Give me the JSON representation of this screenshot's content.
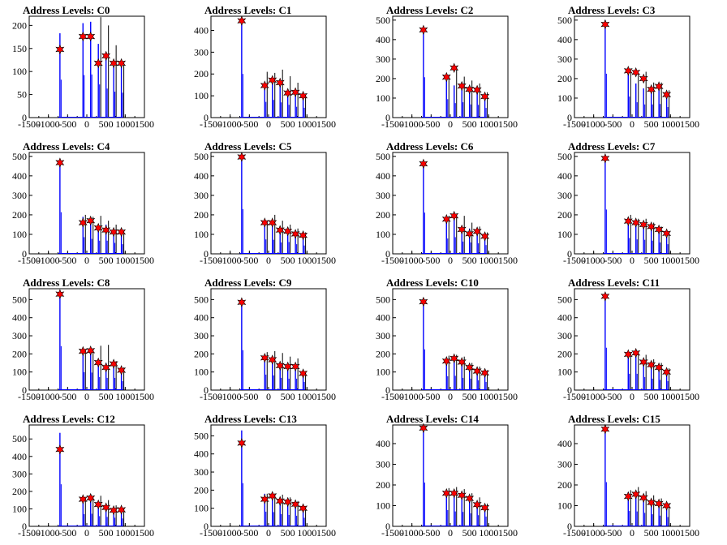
{
  "figure": {
    "xticks": [
      -1500,
      -1000,
      -500,
      0,
      500,
      1000,
      1500
    ],
    "xlim": [
      -1500,
      1500
    ],
    "colors": {
      "histogram": "#0000ff",
      "overlay": "#000000",
      "marker": "#ff0000",
      "axis": "#000000"
    }
  },
  "chart_data": [
    {
      "type": "bar",
      "title": "Address Levels: C0",
      "ylim": [
        0,
        220
      ],
      "yticks": [
        0,
        50,
        100,
        150,
        200
      ],
      "peaks": {
        "x": [
          -700,
          -100,
          100,
          300,
          500,
          700,
          900
        ],
        "blue": [
          183,
          205,
          208,
          160,
          140,
          125,
          120
        ],
        "black": [
          0,
          0,
          0,
          218,
          200,
          157,
          118
        ]
      },
      "markers": {
        "x": [
          -700,
          -100,
          100,
          300,
          500,
          700,
          900
        ],
        "y": [
          148,
          176,
          176,
          118,
          134,
          118,
          118
        ]
      }
    },
    {
      "type": "bar",
      "title": "Address Levels: C1",
      "ylim": [
        0,
        465
      ],
      "yticks": [
        0,
        100,
        200,
        300,
        400
      ],
      "peaks": {
        "x": [
          -700,
          -100,
          100,
          300,
          500,
          700,
          900
        ],
        "blue": [
          445,
          160,
          180,
          155,
          130,
          110,
          100
        ],
        "black": [
          0,
          210,
          205,
          220,
          190,
          160,
          110
        ]
      },
      "markers": {
        "x": [
          -700,
          -100,
          100,
          300,
          500,
          700,
          900
        ],
        "y": [
          444,
          147,
          172,
          160,
          113,
          116,
          100
        ]
      }
    },
    {
      "type": "bar",
      "title": "Address Levels: C2",
      "ylim": [
        0,
        520
      ],
      "yticks": [
        0,
        100,
        200,
        300,
        400,
        500
      ],
      "peaks": {
        "x": [
          -700,
          -100,
          100,
          300,
          500,
          700,
          900
        ],
        "blue": [
          460,
          210,
          165,
          175,
          150,
          145,
          110
        ],
        "black": [
          0,
          220,
          255,
          210,
          190,
          175,
          130
        ]
      },
      "markers": {
        "x": [
          -700,
          -100,
          100,
          300,
          500,
          700,
          900
        ],
        "y": [
          450,
          208,
          255,
          162,
          145,
          142,
          108
        ]
      }
    },
    {
      "type": "bar",
      "title": "Address Levels: C3",
      "ylim": [
        0,
        520
      ],
      "yticks": [
        0,
        100,
        200,
        300,
        400,
        500
      ],
      "peaks": {
        "x": [
          -700,
          -100,
          100,
          300,
          500,
          700,
          900
        ],
        "blue": [
          500,
          240,
          175,
          150,
          150,
          155,
          120
        ],
        "black": [
          0,
          240,
          225,
          235,
          180,
          180,
          140
        ]
      },
      "markers": {
        "x": [
          -700,
          -100,
          100,
          300,
          500,
          700,
          900
        ],
        "y": [
          478,
          240,
          232,
          200,
          145,
          160,
          118
        ]
      }
    },
    {
      "type": "bar",
      "title": "Address Levels: C4",
      "ylim": [
        0,
        520
      ],
      "yticks": [
        0,
        100,
        200,
        300,
        400,
        500
      ],
      "peaks": {
        "x": [
          -700,
          -100,
          100,
          300,
          500,
          700,
          900
        ],
        "blue": [
          475,
          190,
          170,
          150,
          150,
          125,
          110
        ],
        "black": [
          0,
          200,
          190,
          195,
          170,
          150,
          120
        ]
      },
      "markers": {
        "x": [
          -700,
          -100,
          100,
          300,
          500,
          700,
          900
        ],
        "y": [
          468,
          160,
          170,
          133,
          122,
          112,
          112
        ]
      }
    },
    {
      "type": "bar",
      "title": "Address Levels: C5",
      "ylim": [
        0,
        520
      ],
      "yticks": [
        0,
        100,
        200,
        300,
        400,
        500
      ],
      "peaks": {
        "x": [
          -700,
          -100,
          100,
          300,
          500,
          700,
          900
        ],
        "blue": [
          510,
          165,
          160,
          130,
          135,
          110,
          95
        ],
        "black": [
          0,
          170,
          200,
          170,
          150,
          130,
          110
        ]
      },
      "markers": {
        "x": [
          -700,
          -100,
          100,
          300,
          500,
          700,
          900
        ],
        "y": [
          497,
          160,
          160,
          122,
          116,
          102,
          95
        ]
      }
    },
    {
      "type": "bar",
      "title": "Address Levels: C6",
      "ylim": [
        0,
        520
      ],
      "yticks": [
        0,
        100,
        200,
        300,
        400,
        500
      ],
      "peaks": {
        "x": [
          -700,
          -100,
          100,
          300,
          500,
          700,
          900
        ],
        "blue": [
          470,
          175,
          190,
          140,
          130,
          120,
          100
        ],
        "black": [
          0,
          195,
          200,
          195,
          160,
          140,
          110
        ]
      },
      "markers": {
        "x": [
          -700,
          -100,
          100,
          300,
          500,
          700,
          900
        ],
        "y": [
          462,
          178,
          195,
          125,
          103,
          115,
          90
        ]
      }
    },
    {
      "type": "bar",
      "title": "Address Levels: C7",
      "ylim": [
        0,
        520
      ],
      "yticks": [
        0,
        100,
        200,
        300,
        400,
        500
      ],
      "peaks": {
        "x": [
          -700,
          -100,
          100,
          300,
          500,
          700,
          900
        ],
        "blue": [
          505,
          180,
          165,
          160,
          150,
          130,
          110
        ],
        "black": [
          0,
          200,
          180,
          180,
          160,
          140,
          115
        ]
      },
      "markers": {
        "x": [
          -700,
          -100,
          100,
          300,
          500,
          700,
          900
        ],
        "y": [
          490,
          168,
          160,
          150,
          140,
          125,
          105
        ]
      }
    },
    {
      "type": "bar",
      "title": "Address Levels: C8",
      "ylim": [
        0,
        560
      ],
      "yticks": [
        0,
        100,
        200,
        300,
        400,
        500
      ],
      "peaks": {
        "x": [
          -700,
          -100,
          100,
          300,
          500,
          700,
          900
        ],
        "blue": [
          540,
          220,
          215,
          160,
          150,
          150,
          110
        ],
        "black": [
          0,
          225,
          230,
          245,
          250,
          160,
          125
        ]
      },
      "markers": {
        "x": [
          -700,
          -100,
          100,
          300,
          500,
          700,
          900
        ],
        "y": [
          530,
          215,
          218,
          152,
          125,
          145,
          110
        ]
      }
    },
    {
      "type": "bar",
      "title": "Address Levels: C9",
      "ylim": [
        0,
        560
      ],
      "yticks": [
        0,
        100,
        200,
        300,
        400,
        500
      ],
      "peaks": {
        "x": [
          -700,
          -100,
          100,
          300,
          500,
          700,
          900
        ],
        "blue": [
          490,
          190,
          180,
          150,
          140,
          140,
          100
        ],
        "black": [
          0,
          210,
          215,
          205,
          185,
          175,
          105
        ]
      },
      "markers": {
        "x": [
          -700,
          -100,
          100,
          300,
          500,
          700,
          900
        ],
        "y": [
          485,
          178,
          168,
          135,
          130,
          130,
          92
        ]
      }
    },
    {
      "type": "bar",
      "title": "Address Levels: C10",
      "ylim": [
        0,
        560
      ],
      "yticks": [
        0,
        100,
        200,
        300,
        400,
        500
      ],
      "peaks": {
        "x": [
          -700,
          -100,
          100,
          300,
          500,
          700,
          900
        ],
        "blue": [
          500,
          170,
          175,
          150,
          140,
          120,
          100
        ],
        "black": [
          0,
          190,
          195,
          185,
          150,
          130,
          110
        ]
      },
      "markers": {
        "x": [
          -700,
          -100,
          100,
          300,
          500,
          700,
          900
        ],
        "y": [
          488,
          160,
          175,
          155,
          125,
          105,
          95
        ]
      }
    },
    {
      "type": "bar",
      "title": "Address Levels: C11",
      "ylim": [
        0,
        560
      ],
      "yticks": [
        0,
        100,
        200,
        300,
        400,
        500
      ],
      "peaks": {
        "x": [
          -700,
          -100,
          100,
          300,
          500,
          700,
          900
        ],
        "blue": [
          520,
          200,
          200,
          160,
          140,
          125,
          110
        ],
        "black": [
          0,
          210,
          215,
          195,
          170,
          150,
          120
        ]
      },
      "markers": {
        "x": [
          -700,
          -100,
          100,
          300,
          500,
          700,
          900
        ],
        "y": [
          518,
          198,
          205,
          155,
          140,
          125,
          100
        ]
      }
    },
    {
      "type": "bar",
      "title": "Address Levels: C12",
      "ylim": [
        0,
        580
      ],
      "yticks": [
        0,
        100,
        200,
        300,
        400,
        500
      ],
      "peaks": {
        "x": [
          -700,
          -100,
          100,
          300,
          500,
          700,
          900
        ],
        "blue": [
          535,
          155,
          160,
          130,
          120,
          110,
          100
        ],
        "black": [
          0,
          165,
          165,
          175,
          150,
          120,
          105
        ]
      },
      "markers": {
        "x": [
          -700,
          -100,
          100,
          300,
          500,
          700,
          900
        ],
        "y": [
          440,
          155,
          162,
          125,
          108,
          92,
          95
        ]
      }
    },
    {
      "type": "bar",
      "title": "Address Levels: C13",
      "ylim": [
        0,
        560
      ],
      "yticks": [
        0,
        100,
        200,
        300,
        400,
        500
      ],
      "peaks": {
        "x": [
          -700,
          -100,
          100,
          300,
          500,
          700,
          900
        ],
        "blue": [
          530,
          180,
          175,
          150,
          140,
          130,
          105
        ],
        "black": [
          0,
          180,
          180,
          175,
          160,
          140,
          110
        ]
      },
      "markers": {
        "x": [
          -700,
          -100,
          100,
          300,
          500,
          700,
          900
        ],
        "y": [
          460,
          150,
          168,
          140,
          135,
          122,
          100
        ]
      }
    },
    {
      "type": "bar",
      "title": "Address Levels: C14",
      "ylim": [
        0,
        490
      ],
      "yticks": [
        0,
        100,
        200,
        300,
        400
      ],
      "peaks": {
        "x": [
          -700,
          -100,
          100,
          300,
          500,
          700,
          900
        ],
        "blue": [
          470,
          175,
          160,
          155,
          140,
          120,
          105
        ],
        "black": [
          0,
          185,
          190,
          180,
          160,
          140,
          110
        ]
      },
      "markers": {
        "x": [
          -700,
          -100,
          100,
          300,
          500,
          700,
          900
        ],
        "y": [
          475,
          160,
          160,
          150,
          135,
          105,
          90
        ]
      }
    },
    {
      "type": "bar",
      "title": "Address Levels: C15",
      "ylim": [
        0,
        490
      ],
      "yticks": [
        0,
        100,
        200,
        300,
        400
      ],
      "peaks": {
        "x": [
          -700,
          -100,
          100,
          300,
          500,
          700,
          900
        ],
        "blue": [
          475,
          165,
          160,
          145,
          130,
          115,
          100
        ],
        "black": [
          0,
          175,
          190,
          170,
          150,
          135,
          110
        ]
      },
      "markers": {
        "x": [
          -700,
          -100,
          100,
          300,
          500,
          700,
          900
        ],
        "y": [
          470,
          145,
          155,
          138,
          115,
          110,
          100
        ]
      }
    }
  ]
}
